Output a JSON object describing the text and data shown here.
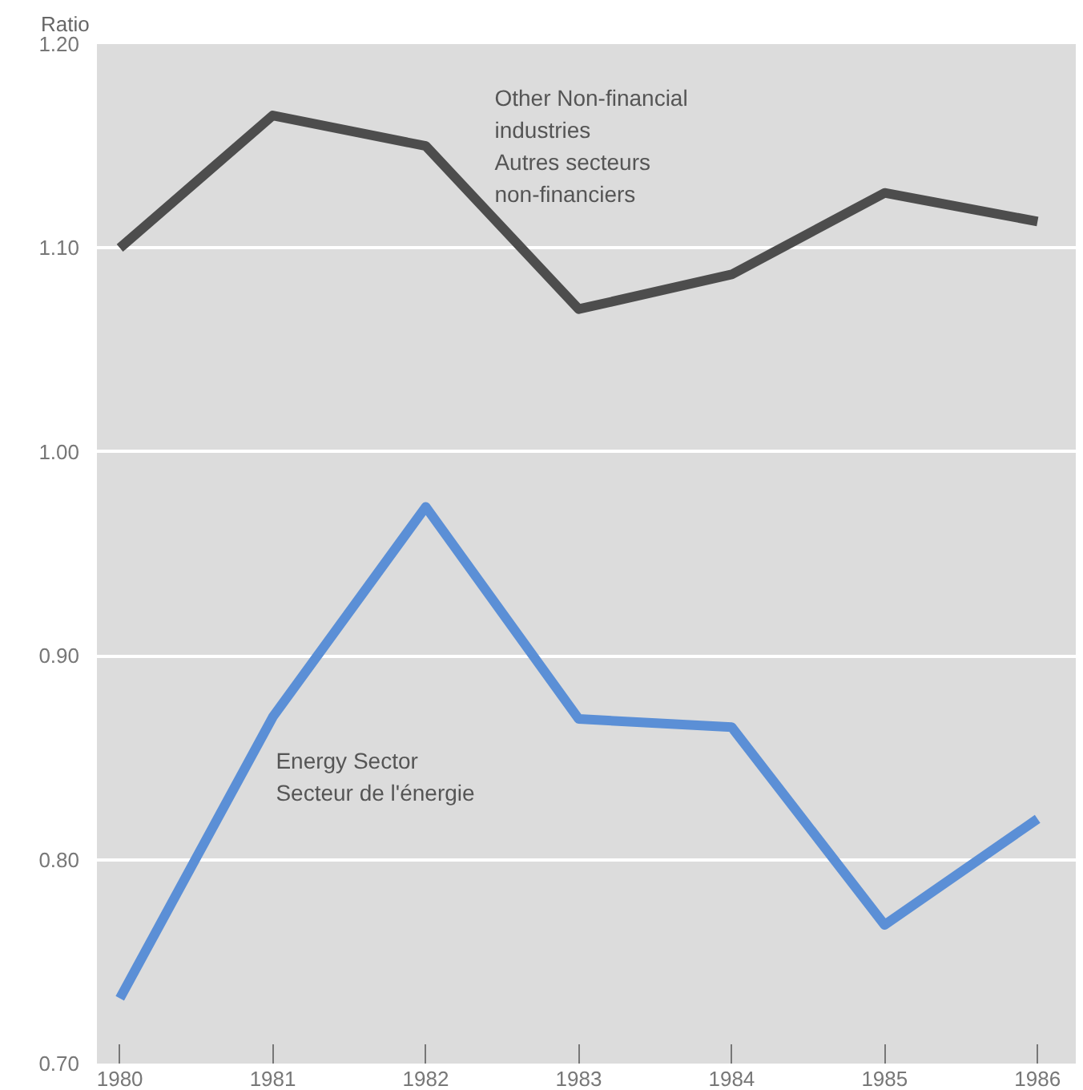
{
  "chart_data": {
    "type": "line",
    "ylabel": "Ratio",
    "categories": [
      "1980",
      "1981",
      "1982",
      "1983",
      "1984",
      "1985",
      "1986"
    ],
    "series": [
      {
        "name": "Other Non-financial\nindustries\nAutres secteurs\nnon-financiers",
        "color": "#4d4d4d",
        "values": [
          1.1,
          1.165,
          1.15,
          1.07,
          1.087,
          1.127,
          1.113
        ]
      },
      {
        "name": "Energy Sector\nSecteur de l'énergie",
        "color": "#5b8fd6",
        "values": [
          0.732,
          0.87,
          0.973,
          0.869,
          0.865,
          0.768,
          0.82
        ]
      }
    ],
    "ylim": [
      0.7,
      1.2
    ],
    "yticks": [
      {
        "value": 0.7,
        "label": "0.70"
      },
      {
        "value": 0.8,
        "label": "0.80"
      },
      {
        "value": 0.9,
        "label": "0.90"
      },
      {
        "value": 1.0,
        "label": "1.00"
      },
      {
        "value": 1.1,
        "label": "1.10"
      },
      {
        "value": 1.2,
        "label": "1.20"
      }
    ],
    "grid": "y",
    "marker": "none",
    "line_style": "solid"
  }
}
